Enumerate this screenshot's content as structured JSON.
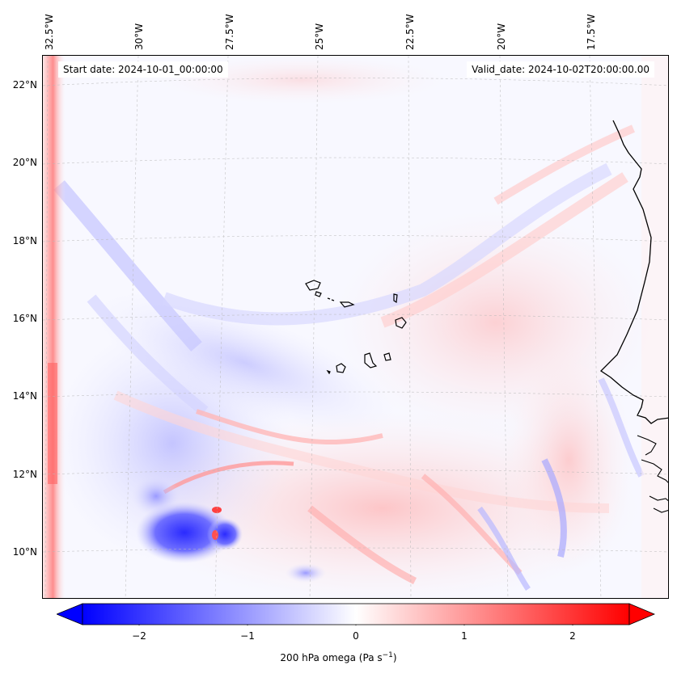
{
  "header": {
    "start_date": "Start date: 2024-10-01_00:00:00",
    "valid_date": "Valid_date: 2024-10-02T20:00:00.00"
  },
  "longitude_labels": [
    "32.5°W",
    "30°W",
    "27.5°W",
    "25°W",
    "22.5°W",
    "20°W",
    "17.5°W"
  ],
  "latitude_labels": [
    "22°N",
    "20°N",
    "18°N",
    "16°N",
    "14°N",
    "12°N",
    "10°N"
  ],
  "colorbar": {
    "ticks": [
      "−2",
      "−1",
      "0",
      "1",
      "2"
    ],
    "label_text": "200 hPa omega (Pa s",
    "label_sup": "−1",
    "label_close": ")",
    "range": [
      -2.6,
      2.6
    ],
    "colors": {
      "negative": "#0000ff",
      "zero": "#ffffff",
      "positive": "#ff0000"
    }
  },
  "map": {
    "region": "Cape Verde / West African coast",
    "field": "200 hPa omega",
    "extends": "both"
  }
}
